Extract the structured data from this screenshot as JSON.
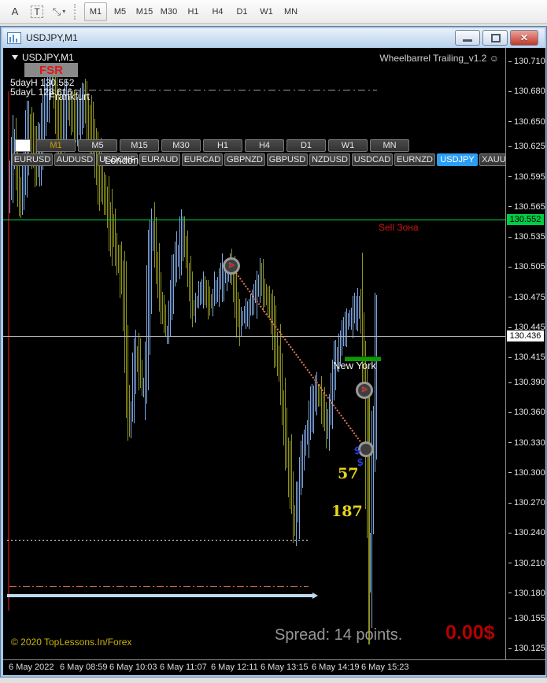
{
  "toolbar": {
    "font_tool": "A",
    "text_tool": "T",
    "timeframes": [
      "M1",
      "M5",
      "M15",
      "M30",
      "H1",
      "H4",
      "D1",
      "W1",
      "MN"
    ],
    "active_timeframe": "M1"
  },
  "window": {
    "title": "USDJPY,M1"
  },
  "chart": {
    "symbol_label": "USDJPY,M1",
    "title": "Wheelbarrel Trailing_v1.2 ☺",
    "texts": {
      "fsr": "FSR",
      "five_day_high_label": "5dayH 130.552",
      "five_day_low_label": "5dayL 128.616",
      "session_frankfurt": "Frankfurt",
      "session_london": "London",
      "session_new_york": "New York",
      "sell_zone": "Sell Зона",
      "count_1": "57",
      "count_2": "187",
      "dollar_1": "$",
      "dollar_2": "$",
      "copyright": "© 2020 TopLessons.In/Forex"
    },
    "status": {
      "spread": "Spread: 14 points.",
      "profit": "0.00$"
    },
    "panel": {
      "timeframes": [
        "M1",
        "M5",
        "M15",
        "M30",
        "H1",
        "H4",
        "D1",
        "W1",
        "MN"
      ],
      "active_timeframe": "M1",
      "symbols": [
        "EURUSD",
        "AUDUSD",
        "USDCHF",
        "EURAUD",
        "EURCAD",
        "GBPNZD",
        "GBPUSD",
        "NZDUSD",
        "USDCAD",
        "EURNZD",
        "USDJPY",
        "XAUUSD"
      ],
      "active_symbol": "USDJPY"
    },
    "colors": {
      "accent_symbol": "#2b9df4",
      "bar_up": "#7fa8e2",
      "bar_down": "#8e921c",
      "sell_zone_line": "#00d848",
      "sell_zone_tag": "#00cc44",
      "current_price_tag": "#ffffff",
      "profit_red": "#b40000",
      "counts_yellow": "#e6d51a"
    }
  },
  "chart_data": {
    "type": "ohlc-bars",
    "symbol": "USDJPY",
    "timeframe": "M1",
    "title": "Wheelbarrel Trailing_v1.2",
    "ylim": [
      130.125,
      130.71
    ],
    "y_ticks": [
      130.71,
      130.68,
      130.65,
      130.625,
      130.595,
      130.565,
      130.535,
      130.505,
      130.475,
      130.445,
      130.415,
      130.39,
      130.36,
      130.33,
      130.3,
      130.27,
      130.24,
      130.21,
      130.18,
      130.155,
      130.125
    ],
    "x_ticks": [
      "6 May 2022",
      "6 May 08:59",
      "6 May 10:03",
      "6 May 11:07",
      "6 May 12:11",
      "6 May 13:15",
      "6 May 14:19",
      "6 May 15:23"
    ],
    "current_price": 130.436,
    "sell_zone_price": 130.552,
    "five_day_high": 130.552,
    "five_day_low": 128.616,
    "spread_points": 14,
    "levels": {
      "upper_dashdot": 130.682,
      "lower_dotted": 130.233,
      "lower_dashdot": 130.187,
      "support_band": 130.177
    },
    "price_path": [
      [
        7,
        130.585
      ],
      [
        15,
        130.625
      ],
      [
        23,
        130.568
      ],
      [
        33,
        130.648
      ],
      [
        43,
        130.61
      ],
      [
        53,
        130.668
      ],
      [
        63,
        130.695
      ],
      [
        73,
        130.64
      ],
      [
        83,
        130.666
      ],
      [
        93,
        130.645
      ],
      [
        103,
        130.67
      ],
      [
        113,
        130.64
      ],
      [
        123,
        130.6
      ],
      [
        133,
        130.563
      ],
      [
        143,
        130.528
      ],
      [
        153,
        130.478
      ],
      [
        161,
        130.345
      ],
      [
        169,
        130.42
      ],
      [
        179,
        130.378
      ],
      [
        189,
        130.542
      ],
      [
        198,
        130.488
      ],
      [
        208,
        130.438
      ],
      [
        219,
        130.508
      ],
      [
        229,
        130.538
      ],
      [
        241,
        130.462
      ],
      [
        253,
        130.482
      ],
      [
        265,
        130.472
      ],
      [
        277,
        130.492
      ],
      [
        290,
        130.506
      ],
      [
        301,
        130.45
      ],
      [
        313,
        130.463
      ],
      [
        327,
        130.492
      ],
      [
        339,
        130.468
      ],
      [
        349,
        130.418
      ],
      [
        359,
        130.338
      ],
      [
        371,
        130.248
      ],
      [
        381,
        130.318
      ],
      [
        391,
        130.362
      ],
      [
        401,
        130.382
      ],
      [
        411,
        130.345
      ],
      [
        423,
        130.412
      ],
      [
        435,
        130.448
      ],
      [
        447,
        130.46
      ],
      [
        455,
        130.47
      ],
      [
        461,
        130.36
      ],
      [
        465,
        130.19
      ],
      [
        470,
        130.298
      ],
      [
        475,
        130.436
      ]
    ]
  }
}
